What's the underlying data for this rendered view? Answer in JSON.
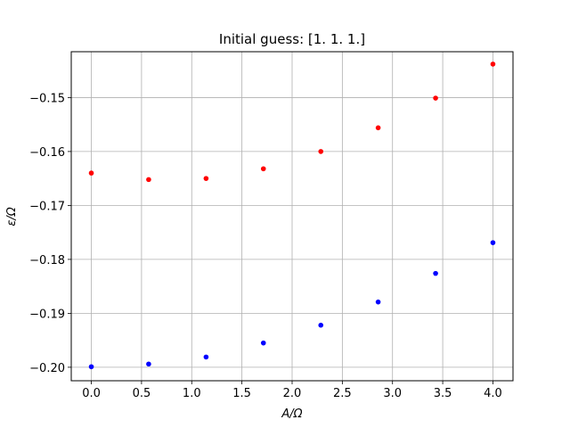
{
  "chart_data": {
    "type": "scatter",
    "title": "Initial guess: [1. 1. 1.]",
    "xlabel": "A/Ω",
    "ylabel": "ε/Ω",
    "xlim": [
      -0.2,
      4.2
    ],
    "ylim": [
      -0.2025,
      -0.1415
    ],
    "xticks": [
      0.0,
      0.5,
      1.0,
      1.5,
      2.0,
      2.5,
      3.0,
      3.5,
      4.0
    ],
    "xtick_labels": [
      "0.0",
      "0.5",
      "1.0",
      "1.5",
      "2.0",
      "2.5",
      "3.0",
      "3.5",
      "4.0"
    ],
    "yticks": [
      -0.2,
      -0.19,
      -0.18,
      -0.17,
      -0.16,
      -0.15
    ],
    "ytick_labels": [
      "−0.20",
      "−0.19",
      "−0.18",
      "−0.17",
      "−0.16",
      "−0.15"
    ],
    "grid": true,
    "x": [
      0.0,
      0.571,
      1.143,
      1.714,
      2.286,
      2.857,
      3.429,
      4.0
    ],
    "series": [
      {
        "color": "#ff0000",
        "values": [
          -0.164,
          -0.1652,
          -0.165,
          -0.1632,
          -0.16,
          -0.1556,
          -0.1501,
          -0.1438
        ]
      },
      {
        "color": "#0000ff",
        "values": [
          -0.1999,
          -0.1994,
          -0.1981,
          -0.1955,
          -0.1922,
          -0.1879,
          -0.1826,
          -0.1769
        ]
      }
    ]
  }
}
